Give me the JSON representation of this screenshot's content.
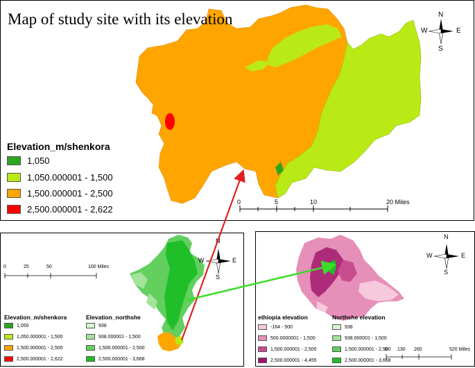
{
  "main": {
    "title": "Map of study site with its elevation",
    "legend_title": "Elevation_m/shenkora",
    "legend": [
      {
        "label": "1,050",
        "color": "#2ea51f"
      },
      {
        "label": "1,050.000001 - 1,500",
        "color": "#b9ea16"
      },
      {
        "label": "1,500.000001 - 2,500",
        "color": "#ffa500"
      },
      {
        "label": "2,500.000001 - 2,622",
        "color": "#ff0000"
      }
    ],
    "scale": {
      "t0": "0",
      "t1": "5",
      "t2": "10",
      "t3": "20 Miles"
    },
    "compass": {
      "n": "N",
      "s": "S",
      "e": "E",
      "w": "W"
    }
  },
  "left": {
    "scale": {
      "t0": "0",
      "t1": "25",
      "t2": "50",
      "t3": "100 Miles"
    },
    "compass": {
      "n": "N",
      "s": "S",
      "e": "E",
      "w": "W"
    },
    "legend1_title": "Elevation_m/shenkora",
    "legend1": [
      {
        "label": "1,050",
        "color": "#2ea51f"
      },
      {
        "label": "1,050.000001 - 1,500",
        "color": "#b9ea16"
      },
      {
        "label": "1,500.000001 - 2,500",
        "color": "#ffa500"
      },
      {
        "label": "2,500.000001 - 2,622",
        "color": "#ff0000"
      }
    ],
    "legend2_title": "Elevation_northshe",
    "legend2": [
      {
        "label": "938",
        "color": "#d6f5d0"
      },
      {
        "label": "938.000001 - 1,500",
        "color": "#a3e39a"
      },
      {
        "label": "1,500.000001 - 2,500",
        "color": "#62cf5e"
      },
      {
        "label": "2,500.000001 - 3,668",
        "color": "#20bf2a"
      }
    ]
  },
  "right": {
    "scale": {
      "t0": "0",
      "t1": "130",
      "t2": "260",
      "t3": "520 Miles"
    },
    "compass": {
      "n": "N",
      "s": "S",
      "e": "E",
      "w": "W"
    },
    "legend1_title": "ethiopia elevation",
    "legend1": [
      {
        "label": "-164 - 500",
        "color": "#f6c9dd"
      },
      {
        "label": "500.0000001 - 1,500",
        "color": "#e58fb9"
      },
      {
        "label": "1,500.000001 - 2,500",
        "color": "#c84d8f"
      },
      {
        "label": "2,500.000001 - 4,455",
        "color": "#a0116a"
      }
    ],
    "legend2_title": "Northshe elevation",
    "legend2": [
      {
        "label": "938",
        "color": "#d6f5d0"
      },
      {
        "label": "938.000001 - 1,500",
        "color": "#a3e39a"
      },
      {
        "label": "1,500.000001 - 2,500",
        "color": "#62cf5e"
      },
      {
        "label": "2,500.000001 - 3,668",
        "color": "#20bf2a"
      }
    ]
  }
}
